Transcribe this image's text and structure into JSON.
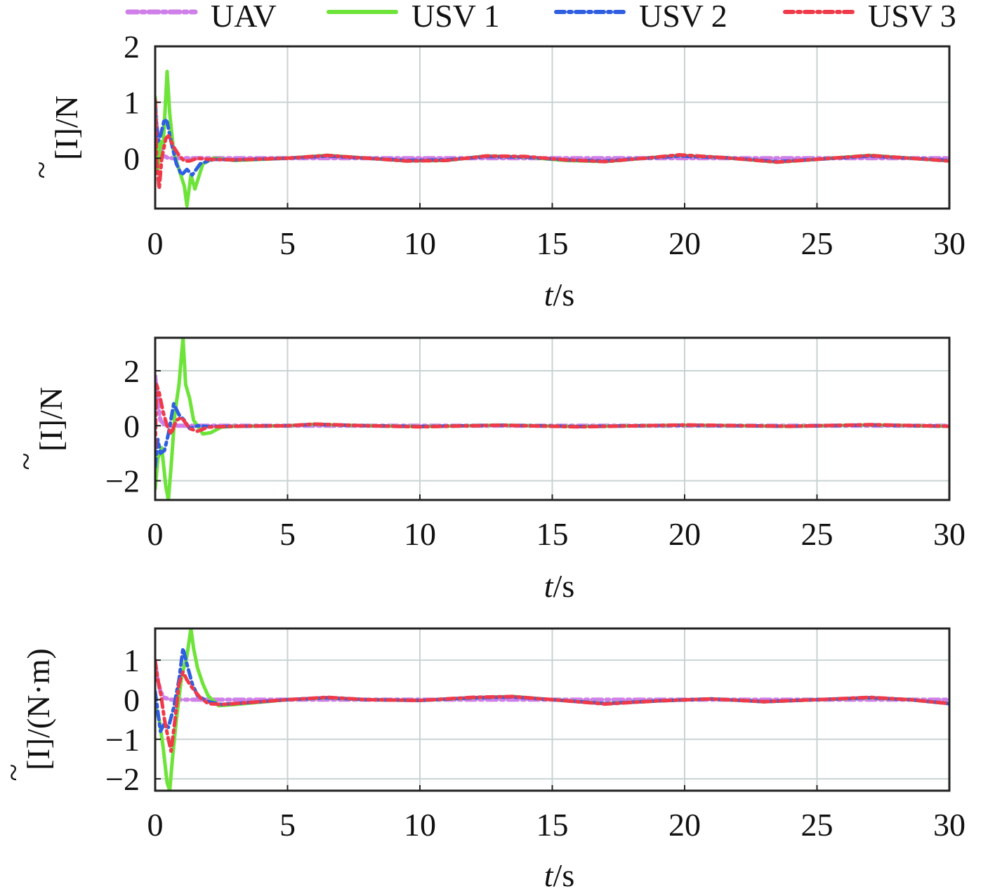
{
  "legend": [
    {
      "name": "UAV",
      "color": "#cf7fe8",
      "dash": "14 6 4 6",
      "width": 6
    },
    {
      "name": "USV 1",
      "color": "#6ee33a",
      "dash": "",
      "width": 5
    },
    {
      "name": "USV 2",
      "color": "#2f5fe0",
      "dash": "12 6 4 6",
      "width": 5
    },
    {
      "name": "USV 3",
      "color": "#ef3a4a",
      "dash": "12 6 4 6",
      "width": 5
    }
  ],
  "chart_data": [
    {
      "type": "line",
      "xlabel_italic": "t",
      "xlabel_rest": "/s",
      "ylabel_main": "[I]",
      "ylabel_unit": "/N",
      "ylabel_tilde": "~",
      "xlim": [
        0,
        30
      ],
      "ylim": [
        -0.9,
        2
      ],
      "xticks": [
        "0",
        "5",
        "10",
        "15",
        "20",
        "25",
        "30"
      ],
      "yticks": [
        {
          "v": 0,
          "label": "0"
        },
        {
          "v": 1,
          "label": "1"
        },
        {
          "v": 2,
          "label": "2"
        }
      ],
      "series": [
        {
          "name": "UAV",
          "x": [
            0,
            0.05,
            0.15,
            0.3,
            0.5,
            0.8,
            1.2,
            2,
            30
          ],
          "y": [
            1.0,
            0.6,
            0.2,
            0.05,
            0.0,
            0.0,
            0.0,
            0.0,
            0.0
          ]
        },
        {
          "name": "USV 1",
          "x": [
            0,
            0.1,
            0.2,
            0.3,
            0.45,
            0.55,
            0.7,
            0.9,
            1.1,
            1.2,
            1.35,
            1.5,
            1.8,
            2.2,
            3,
            5,
            6.5,
            8,
            9.5,
            11,
            12.5,
            14,
            15.5,
            17,
            18.5,
            19.8,
            21.5,
            23.5,
            25,
            27,
            28.5,
            30
          ],
          "y": [
            1.1,
            -0.2,
            0.3,
            0.2,
            1.55,
            0.8,
            0.1,
            -0.2,
            -0.5,
            -0.85,
            -0.3,
            -0.55,
            -0.1,
            0.0,
            -0.04,
            0.0,
            0.05,
            0.0,
            -0.05,
            -0.04,
            0.04,
            0.02,
            -0.04,
            -0.06,
            0.0,
            0.05,
            0.01,
            -0.07,
            -0.02,
            0.05,
            0.0,
            -0.05
          ]
        },
        {
          "name": "USV 2",
          "x": [
            0,
            0.1,
            0.2,
            0.35,
            0.45,
            0.6,
            0.8,
            1.0,
            1.2,
            1.4,
            1.7,
            2.2,
            3,
            5,
            6.5,
            8,
            9.5,
            11,
            12.5,
            14,
            15.5,
            17,
            18.5,
            19.8,
            21.5,
            23.5,
            25,
            27,
            28.5,
            30
          ],
          "y": [
            0.9,
            0.3,
            0.4,
            0.7,
            0.65,
            0.3,
            -0.1,
            -0.3,
            -0.2,
            -0.3,
            -0.1,
            -0.02,
            -0.03,
            0.0,
            0.04,
            0.0,
            -0.04,
            -0.03,
            0.03,
            0.02,
            -0.03,
            -0.05,
            0.0,
            0.04,
            0.01,
            -0.06,
            -0.02,
            0.04,
            0.0,
            -0.04
          ]
        },
        {
          "name": "USV 3",
          "x": [
            0,
            0.05,
            0.15,
            0.25,
            0.4,
            0.5,
            0.7,
            0.9,
            1.1,
            1.3,
            1.6,
            2,
            3,
            5,
            6.5,
            8,
            9.5,
            11,
            12.5,
            14,
            15.5,
            17,
            18.5,
            19.8,
            21.5,
            23.5,
            25,
            27,
            28.5,
            30
          ],
          "y": [
            1.05,
            0.0,
            -0.55,
            0.0,
            0.35,
            0.4,
            0.2,
            0.05,
            -0.05,
            -0.05,
            0.0,
            -0.02,
            -0.03,
            0.0,
            0.05,
            0.0,
            -0.05,
            -0.04,
            0.04,
            0.03,
            -0.03,
            -0.06,
            0.0,
            0.06,
            0.01,
            -0.07,
            -0.02,
            0.05,
            0.0,
            -0.05
          ]
        }
      ]
    },
    {
      "type": "line",
      "xlabel_italic": "t",
      "xlabel_rest": "/s",
      "ylabel_main": "[I]",
      "ylabel_unit": "/N",
      "ylabel_tilde": "~",
      "xlim": [
        0,
        30
      ],
      "ylim": [
        -2.7,
        3.2
      ],
      "xticks": [
        "0",
        "5",
        "10",
        "15",
        "20",
        "25",
        "30"
      ],
      "yticks": [
        {
          "v": -2,
          "label": "−2"
        },
        {
          "v": 0,
          "label": "0"
        },
        {
          "v": 2,
          "label": "2"
        }
      ],
      "series": [
        {
          "name": "UAV",
          "x": [
            0,
            0.1,
            0.2,
            0.35,
            0.6,
            1.0,
            2,
            30
          ],
          "y": [
            1.8,
            0.8,
            0.2,
            0.05,
            0.0,
            0.0,
            0.0,
            0.0
          ]
        },
        {
          "name": "USV 1",
          "x": [
            0,
            0.1,
            0.25,
            0.4,
            0.5,
            0.6,
            0.75,
            0.9,
            1.05,
            1.15,
            1.3,
            1.45,
            1.6,
            1.8,
            2.1,
            2.5,
            3,
            5,
            6,
            8,
            10,
            13,
            16,
            20,
            24,
            27,
            30
          ],
          "y": [
            -2.3,
            -1.2,
            -0.8,
            -2.2,
            -2.7,
            -1.5,
            0.5,
            1.5,
            3.2,
            1.5,
            1.0,
            0.2,
            0.0,
            -0.3,
            -0.25,
            -0.05,
            -0.02,
            0.0,
            0.05,
            0.0,
            -0.03,
            0.02,
            -0.03,
            0.02,
            -0.02,
            0.03,
            -0.02
          ]
        },
        {
          "name": "USV 2",
          "x": [
            0,
            0.1,
            0.2,
            0.35,
            0.5,
            0.7,
            0.9,
            1.1,
            1.3,
            1.6,
            2,
            3,
            5,
            6,
            8,
            10,
            13,
            16,
            20,
            24,
            27,
            30
          ],
          "y": [
            -1.5,
            -0.5,
            -1.0,
            -0.9,
            -0.3,
            0.8,
            0.4,
            0.2,
            -0.1,
            0.0,
            -0.03,
            -0.02,
            0.0,
            0.05,
            0.0,
            -0.03,
            0.02,
            -0.03,
            0.02,
            -0.02,
            0.03,
            -0.02
          ]
        },
        {
          "name": "USV 3",
          "x": [
            0,
            0.05,
            0.15,
            0.3,
            0.45,
            0.6,
            0.8,
            1.0,
            1.3,
            1.6,
            2,
            3,
            5,
            6,
            8,
            10,
            13,
            16,
            20,
            24,
            27,
            30
          ],
          "y": [
            -0.8,
            1.5,
            1.2,
            0.5,
            0.0,
            -0.3,
            0.2,
            0.3,
            -0.1,
            -0.2,
            -0.05,
            -0.02,
            0.0,
            0.06,
            0.0,
            -0.04,
            0.02,
            -0.04,
            0.03,
            -0.02,
            0.04,
            -0.02
          ]
        }
      ]
    },
    {
      "type": "line",
      "xlabel_italic": "t",
      "xlabel_rest": "/s",
      "ylabel_main": "[I]",
      "ylabel_unit": "/(N·m)",
      "ylabel_tilde": "~",
      "xlim": [
        0,
        30
      ],
      "ylim": [
        -2.3,
        1.8
      ],
      "xticks": [
        "0",
        "5",
        "10",
        "15",
        "20",
        "25",
        "30"
      ],
      "yticks": [
        {
          "v": -2,
          "label": "−2"
        },
        {
          "v": -1,
          "label": "−1"
        },
        {
          "v": 0,
          "label": "0"
        },
        {
          "v": 1,
          "label": "1"
        }
      ],
      "series": [
        {
          "name": "UAV",
          "x": [
            0,
            0.1,
            0.2,
            0.35,
            0.6,
            1.0,
            2,
            30
          ],
          "y": [
            0.9,
            0.5,
            0.2,
            0.05,
            0.0,
            0.0,
            0.0,
            0.0
          ]
        },
        {
          "name": "USV 1",
          "x": [
            0,
            0.15,
            0.3,
            0.45,
            0.55,
            0.65,
            0.8,
            1.0,
            1.2,
            1.35,
            1.45,
            1.6,
            1.8,
            2.0,
            2.4,
            3.0,
            5,
            6.5,
            8,
            10,
            12,
            13.5,
            15,
            17,
            19,
            21,
            23,
            25,
            27,
            28.5,
            30
          ],
          "y": [
            -0.2,
            -0.5,
            -1.2,
            -2.1,
            -2.3,
            -1.5,
            -0.5,
            0.6,
            1.1,
            1.8,
            1.3,
            0.8,
            0.4,
            0.1,
            -0.15,
            -0.12,
            0.0,
            0.05,
            0.0,
            -0.02,
            0.05,
            0.08,
            0.0,
            -0.1,
            -0.03,
            0.02,
            -0.05,
            0.0,
            0.05,
            0.0,
            -0.1
          ]
        },
        {
          "name": "USV 2",
          "x": [
            0,
            0.1,
            0.2,
            0.35,
            0.5,
            0.7,
            0.9,
            1.05,
            1.2,
            1.4,
            1.6,
            2.0,
            2.5,
            3.0,
            5,
            6.5,
            8,
            10,
            12,
            13.5,
            15,
            17,
            19,
            21,
            23,
            25,
            27,
            28.5,
            30
          ],
          "y": [
            0.2,
            -0.3,
            -0.8,
            -0.6,
            -0.7,
            -0.2,
            0.5,
            1.3,
            0.9,
            0.4,
            0.1,
            -0.05,
            -0.12,
            -0.1,
            0.0,
            0.05,
            0.0,
            -0.02,
            0.05,
            0.07,
            0.0,
            -0.1,
            -0.03,
            0.02,
            -0.05,
            0.0,
            0.05,
            0.0,
            -0.1
          ]
        },
        {
          "name": "USV 3",
          "x": [
            0,
            0.1,
            0.2,
            0.35,
            0.5,
            0.6,
            0.75,
            0.9,
            1.05,
            1.2,
            1.4,
            1.7,
            2.0,
            2.5,
            3.0,
            5,
            6.5,
            8,
            10,
            12,
            13.5,
            15,
            17,
            19,
            21,
            23,
            25,
            27,
            28.5,
            30
          ],
          "y": [
            1.0,
            0.5,
            0.2,
            -0.5,
            -1.0,
            -1.3,
            -0.5,
            0.4,
            0.7,
            0.5,
            0.3,
            0.05,
            -0.1,
            -0.12,
            -0.1,
            0.0,
            0.06,
            0.0,
            -0.02,
            0.06,
            0.08,
            0.0,
            -0.11,
            -0.03,
            0.02,
            -0.05,
            0.0,
            0.06,
            0.0,
            -0.1
          ]
        }
      ]
    }
  ]
}
